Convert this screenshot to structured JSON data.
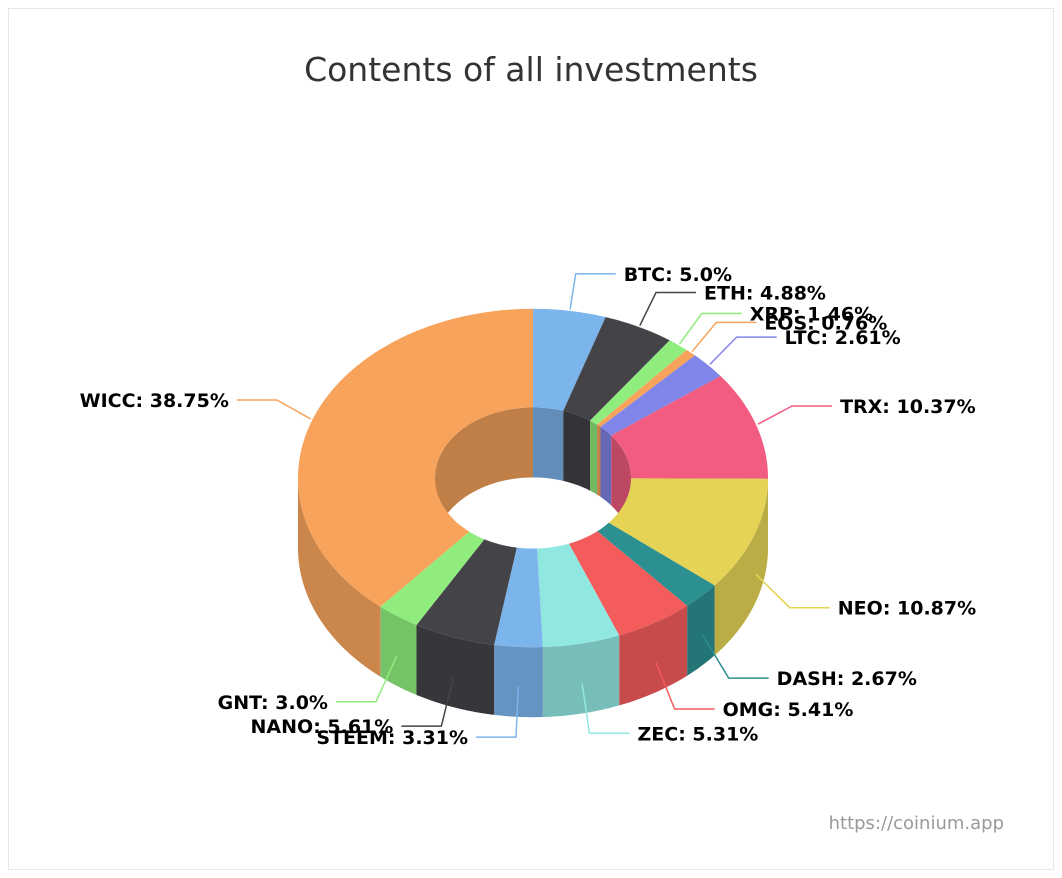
{
  "credit": "https://coinium.app",
  "chart_data": {
    "type": "pie",
    "variant": "3d-donut",
    "title": "Contents of all investments",
    "slices": [
      {
        "name": "BTC",
        "value": 5.0,
        "label": "BTC: 5.0%",
        "color": "#7cb5ec"
      },
      {
        "name": "ETH",
        "value": 4.88,
        "label": "ETH: 4.88%",
        "color": "#434348"
      },
      {
        "name": "XRP",
        "value": 1.46,
        "label": "XRP: 1.46%",
        "color": "#90ed7d"
      },
      {
        "name": "EOS",
        "value": 0.76,
        "label": "EOS: 0.76%",
        "color": "#f7a35c"
      },
      {
        "name": "LTC",
        "value": 2.61,
        "label": "LTC: 2.61%",
        "color": "#8085e9"
      },
      {
        "name": "TRX",
        "value": 10.37,
        "label": "TRX: 10.37%",
        "color": "#f15c80"
      },
      {
        "name": "NEO",
        "value": 10.87,
        "label": "NEO: 10.87%",
        "color": "#e4d354"
      },
      {
        "name": "DASH",
        "value": 2.67,
        "label": "DASH: 2.67%",
        "color": "#2b908f"
      },
      {
        "name": "OMG",
        "value": 5.41,
        "label": "OMG: 5.41%",
        "color": "#f45b5b"
      },
      {
        "name": "ZEC",
        "value": 5.31,
        "label": "ZEC: 5.31%",
        "color": "#91e8e1"
      },
      {
        "name": "STEEM",
        "value": 3.31,
        "label": "STEEM: 3.31%",
        "color": "#7cb5ec"
      },
      {
        "name": "NANO",
        "value": 5.61,
        "label": "NANO: 5.61%",
        "color": "#434348"
      },
      {
        "name": "GNT",
        "value": 3.0,
        "label": "GNT: 3.0%",
        "color": "#90ed7d"
      },
      {
        "name": "WICC",
        "value": 38.75,
        "label": "WICC: 38.75%",
        "color": "#f7a35c"
      }
    ]
  }
}
